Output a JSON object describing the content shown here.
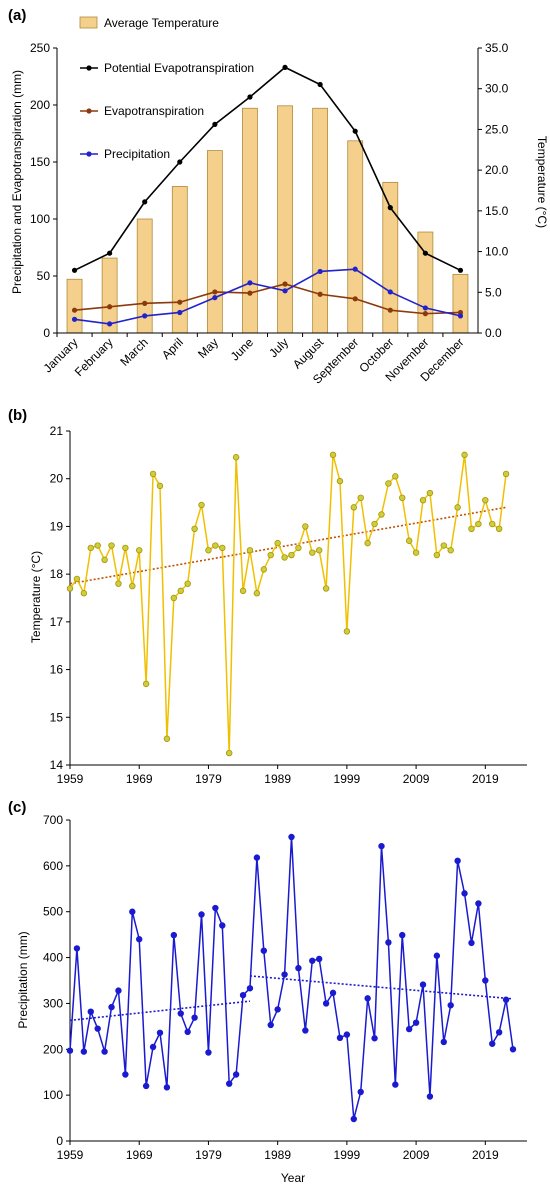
{
  "chart_data": [
    {
      "panel": "(a)",
      "type": "bar",
      "categories": [
        "January",
        "February",
        "March",
        "April",
        "May",
        "June",
        "July",
        "August",
        "September",
        "October",
        "November",
        "December"
      ],
      "ylabel": "Precipitation and Evapotranspiration (mm)",
      "y2label": "Temperature (°C)",
      "ylim": [
        0,
        250
      ],
      "y2lim": [
        0,
        35
      ],
      "yticks": [
        "0",
        "50",
        "100",
        "150",
        "200",
        "250"
      ],
      "y2ticks": [
        "0.0",
        "5.0",
        "10.0",
        "15.0",
        "20.0",
        "25.0",
        "30.0",
        "35.0"
      ],
      "legend": "top-left",
      "bars": {
        "name": "Average Temperature",
        "axis": "right",
        "color": "#f5d08c",
        "values": [
          6.6,
          9.2,
          14.0,
          18.0,
          22.4,
          27.6,
          27.9,
          27.6,
          23.6,
          18.5,
          12.4,
          7.2
        ]
      },
      "series": [
        {
          "name": "Potential Evapotranspiration",
          "color": "#000000",
          "values": [
            55,
            70,
            115,
            150,
            183,
            207,
            233,
            218,
            177,
            110,
            70,
            55
          ]
        },
        {
          "name": "Evapotranspiration",
          "color": "#8b3a0e",
          "values": [
            20,
            23,
            26,
            27,
            36,
            35,
            43,
            34,
            30,
            20,
            17,
            18
          ]
        },
        {
          "name": "Precipitation",
          "color": "#2222cc",
          "values": [
            12,
            8,
            15,
            18,
            31,
            44,
            37,
            54,
            56,
            36,
            22,
            15
          ]
        }
      ]
    },
    {
      "panel": "(b)",
      "type": "line",
      "ylabel": "Temperature (°C)",
      "xlim": [
        1959,
        2023
      ],
      "ylim": [
        14,
        21
      ],
      "xticks": [
        "1959",
        "1969",
        "1979",
        "1989",
        "1999",
        "2009",
        "2019"
      ],
      "yticks": [
        "14",
        "15",
        "16",
        "17",
        "18",
        "19",
        "20",
        "21"
      ],
      "color": "#f0c000",
      "trend": {
        "color": "#c05000",
        "values": [
          17.8,
          19.4
        ]
      },
      "x": [
        1959,
        1960,
        1961,
        1962,
        1963,
        1964,
        1965,
        1966,
        1967,
        1968,
        1969,
        1970,
        1971,
        1972,
        1973,
        1974,
        1975,
        1976,
        1977,
        1978,
        1979,
        1980,
        1981,
        1982,
        1983,
        1984,
        1985,
        1986,
        1987,
        1988,
        1989,
        1990,
        1991,
        1992,
        1993,
        1994,
        1995,
        1996,
        1997,
        1998,
        1999,
        2000,
        2001,
        2002,
        2003,
        2004,
        2005,
        2006,
        2007,
        2008,
        2009,
        2010,
        2011,
        2012,
        2013,
        2014,
        2015,
        2016,
        2017,
        2018,
        2019,
        2020,
        2021,
        2022,
        2023
      ],
      "values": [
        17.7,
        17.9,
        17.6,
        18.55,
        18.6,
        18.3,
        18.6,
        17.8,
        18.55,
        17.75,
        18.5,
        15.7,
        20.1,
        19.85,
        14.55,
        17.5,
        17.65,
        17.8,
        18.95,
        19.45,
        18.5,
        18.6,
        18.55,
        14.25,
        20.45,
        17.65,
        18.5,
        17.6,
        18.1,
        18.4,
        18.65,
        18.35,
        18.4,
        18.55,
        19.0,
        18.45,
        18.5,
        17.7,
        20.5,
        19.95,
        16.8,
        19.4,
        19.6,
        18.65,
        19.05,
        19.25,
        19.9,
        20.05,
        19.6,
        18.7,
        18.45,
        19.55,
        19.7,
        18.4,
        18.6,
        18.5,
        19.4,
        20.5,
        18.95,
        19.05,
        19.55,
        19.05,
        18.95,
        20.1,
        null
      ]
    },
    {
      "panel": "(c)",
      "type": "line",
      "xlabel": "Year",
      "ylabel": "Precipitation (mm)",
      "xlim": [
        1959,
        2023
      ],
      "ylim": [
        0,
        700
      ],
      "xticks": [
        "1959",
        "1969",
        "1979",
        "1989",
        "1999",
        "2009",
        "2019"
      ],
      "yticks": [
        "0",
        "100",
        "200",
        "300",
        "400",
        "500",
        "600",
        "700"
      ],
      "color": "#1a1ad0",
      "trend_segments": [
        {
          "x": [
            1959,
            1985
          ],
          "values": [
            263,
            305
          ]
        },
        {
          "x": [
            1985,
            2023
          ],
          "values": [
            360,
            310
          ]
        }
      ],
      "x": [
        1959,
        1960,
        1961,
        1962,
        1963,
        1964,
        1965,
        1966,
        1967,
        1968,
        1969,
        1970,
        1971,
        1972,
        1973,
        1974,
        1975,
        1976,
        1977,
        1978,
        1979,
        1980,
        1981,
        1982,
        1983,
        1984,
        1985,
        1986,
        1987,
        1988,
        1989,
        1990,
        1991,
        1992,
        1993,
        1994,
        1995,
        1996,
        1997,
        1998,
        1999,
        2000,
        2001,
        2002,
        2003,
        2004,
        2005,
        2006,
        2007,
        2008,
        2009,
        2010,
        2011,
        2012,
        2013,
        2014,
        2015,
        2016,
        2017,
        2018,
        2019,
        2020,
        2021,
        2022,
        2023
      ],
      "values": [
        197,
        420,
        195,
        282,
        245,
        195,
        292,
        328,
        145,
        500,
        440,
        120,
        205,
        236,
        117,
        449,
        278,
        238,
        269,
        494,
        193,
        508,
        470,
        125,
        145,
        318,
        333,
        618,
        415,
        253,
        287,
        363,
        663,
        377,
        241,
        393,
        397,
        300,
        323,
        225,
        232,
        48,
        107,
        311,
        224,
        643,
        433,
        123,
        449,
        244,
        258,
        341,
        97,
        404,
        216,
        296,
        611,
        540,
        432,
        518,
        350,
        212,
        237,
        308,
        200
      ]
    }
  ]
}
